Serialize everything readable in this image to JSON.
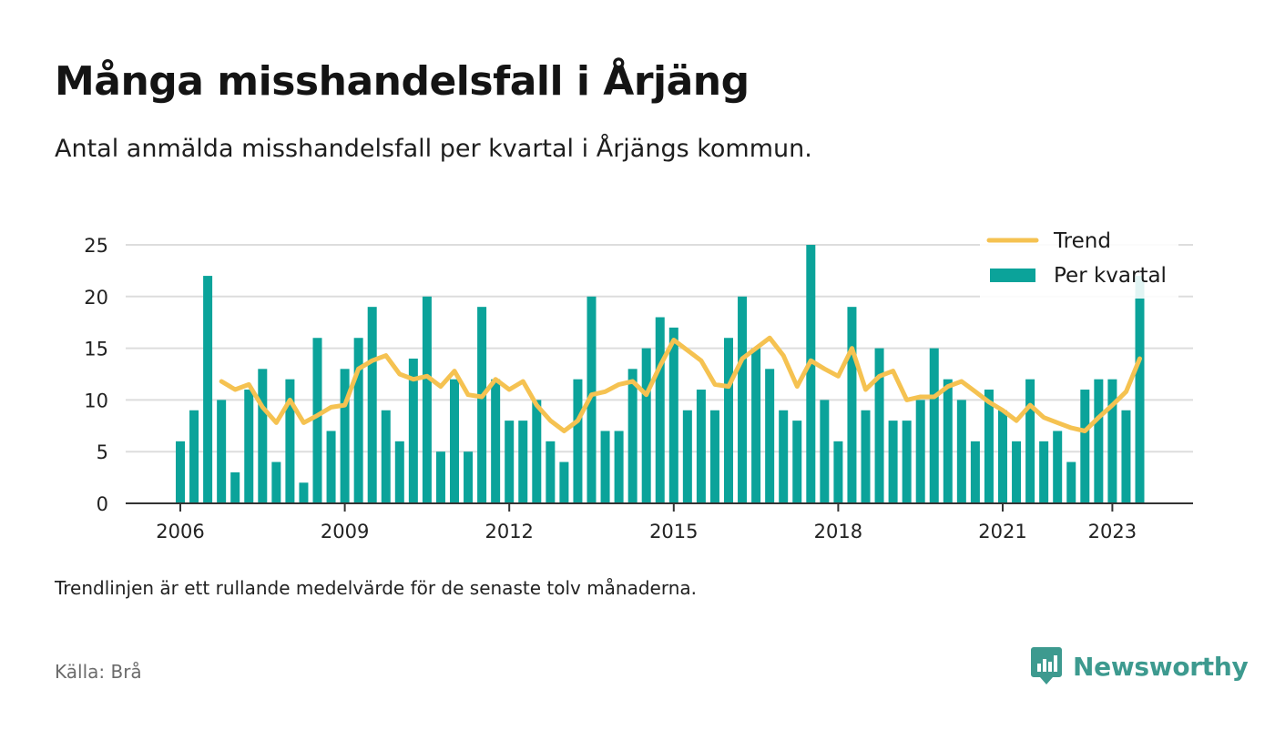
{
  "title": "Många misshandelsfall i Årjäng",
  "subtitle": "Antal anmälda misshandelsfall per kvartal i Årjängs kommun.",
  "note": "Trendlinjen är ett rullande medelvärde för de senaste tolv månaderna.",
  "source": "Källa: Brå",
  "brand": {
    "name": "Newsworthy",
    "icon": "newsworthy-logo-icon"
  },
  "colors": {
    "bar": "#0ba39a",
    "trend": "#f5c251",
    "grid": "#dddddd",
    "axis": "#333333",
    "brand": "#3d9a8f"
  },
  "chart_data": {
    "type": "bar",
    "ylim": [
      0,
      25
    ],
    "yticks": [
      0,
      5,
      10,
      15,
      20,
      25
    ],
    "xticks": [
      {
        "label": "2006",
        "index": 0
      },
      {
        "label": "2009",
        "index": 12
      },
      {
        "label": "2012",
        "index": 24
      },
      {
        "label": "2015",
        "index": 36
      },
      {
        "label": "2018",
        "index": 48
      },
      {
        "label": "2021",
        "index": 60
      },
      {
        "label": "2023",
        "index": 68
      }
    ],
    "grid": true,
    "legend": "top-right",
    "series": [
      {
        "name": "Per kvartal",
        "kind": "bar",
        "values": [
          6,
          9,
          22,
          10,
          3,
          11,
          13,
          4,
          12,
          2,
          16,
          7,
          13,
          16,
          19,
          9,
          6,
          14,
          20,
          5,
          12,
          5,
          19,
          12,
          8,
          8,
          10,
          6,
          4,
          12,
          20,
          7,
          7,
          13,
          15,
          18,
          17,
          9,
          11,
          9,
          16,
          20,
          15,
          13,
          9,
          8,
          25,
          10,
          6,
          19,
          9,
          15,
          8,
          8,
          10,
          15,
          12,
          10,
          6,
          11,
          9,
          6,
          12,
          6,
          7,
          4,
          11,
          12,
          12,
          9,
          22
        ]
      },
      {
        "name": "Trend",
        "kind": "line",
        "values": [
          null,
          null,
          null,
          11.8,
          11.0,
          11.5,
          9.3,
          7.8,
          10.0,
          7.8,
          8.5,
          9.3,
          9.5,
          13.0,
          13.8,
          14.3,
          12.5,
          12.0,
          12.3,
          11.3,
          12.8,
          10.5,
          10.3,
          12.0,
          11.0,
          11.8,
          9.5,
          8.0,
          7.0,
          8.0,
          10.5,
          10.8,
          11.5,
          11.8,
          10.5,
          13.3,
          15.8,
          14.8,
          13.8,
          11.5,
          11.3,
          14.0,
          15.0,
          16.0,
          14.3,
          11.3,
          13.8,
          13.0,
          12.3,
          15.0,
          11.0,
          12.3,
          12.8,
          10.0,
          10.3,
          10.3,
          11.3,
          11.8,
          10.8,
          9.8,
          9.0,
          8.0,
          9.5,
          8.3,
          7.8,
          7.3,
          7.0,
          8.3,
          9.5,
          10.8,
          14.0
        ]
      }
    ]
  }
}
